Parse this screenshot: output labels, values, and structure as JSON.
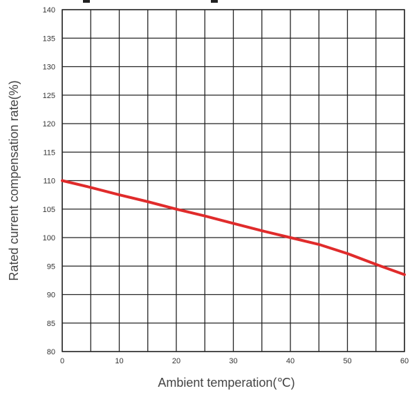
{
  "chart_data": {
    "type": "line",
    "title": "",
    "xlabel": "Ambient temperation(℃)",
    "ylabel": "Rated current compensation rate(%)",
    "xlim": [
      0,
      60
    ],
    "ylim": [
      80,
      140
    ],
    "xticks": [
      0,
      10,
      20,
      30,
      40,
      50,
      60
    ],
    "yticks": [
      80,
      85,
      90,
      95,
      100,
      105,
      110,
      115,
      120,
      125,
      130,
      135,
      140
    ],
    "grid": true,
    "line_color": "#e02b2b",
    "series": [
      {
        "x": [
          0,
          5,
          10,
          15,
          20,
          25,
          30,
          35,
          40,
          45,
          50,
          55,
          60
        ],
        "values": [
          110,
          108.8,
          107.5,
          106.3,
          105,
          103.8,
          102.5,
          101.2,
          100,
          98.8,
          97.2,
          95.3,
          93.5
        ]
      }
    ]
  }
}
